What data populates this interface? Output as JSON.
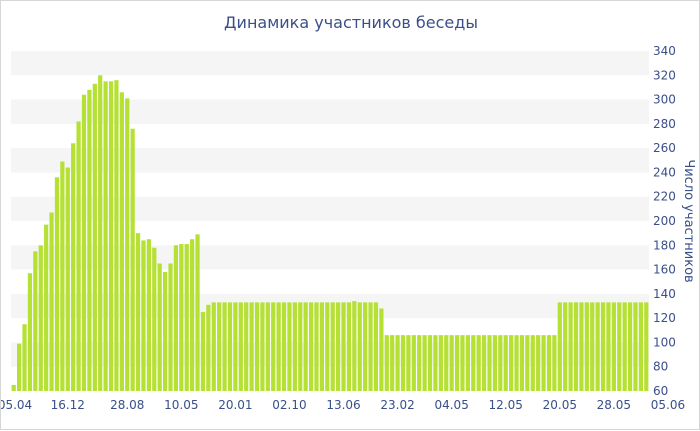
{
  "chart_data": {
    "type": "bar",
    "title": "Динамика участников беседы",
    "ylabel": "Число участников",
    "xlabel": "",
    "ylim": [
      60,
      340
    ],
    "yticks": [
      60,
      80,
      100,
      120,
      140,
      160,
      180,
      200,
      220,
      240,
      260,
      280,
      300,
      320,
      340
    ],
    "xtick_labels": [
      "05.04",
      "16.12",
      "28.08",
      "10.05",
      "20.01",
      "02.10",
      "13.06",
      "23.02",
      "04.05",
      "12.05",
      "20.05",
      "28.05",
      "05.06"
    ],
    "xtick_bar_index": [
      0,
      10,
      21,
      31,
      41,
      51,
      61,
      71,
      81,
      91,
      101,
      111,
      121
    ],
    "grid": "horizontal bands",
    "bar_color": "#b5e134",
    "values": [
      65,
      99,
      115,
      157,
      175,
      180,
      197,
      207,
      236,
      249,
      244,
      264,
      282,
      304,
      308,
      313,
      320,
      315,
      315,
      316,
      306,
      301,
      276,
      190,
      184,
      185,
      178,
      165,
      158,
      165,
      180,
      181,
      181,
      185,
      189,
      125,
      131,
      133,
      133,
      133,
      133,
      133,
      133,
      133,
      133,
      133,
      133,
      133,
      133,
      133,
      133,
      133,
      133,
      133,
      133,
      133,
      133,
      133,
      133,
      133,
      133,
      133,
      133,
      134,
      133,
      133,
      133,
      133,
      128,
      106,
      106,
      106,
      106,
      106,
      106,
      106,
      106,
      106,
      106,
      106,
      106,
      106,
      106,
      106,
      106,
      106,
      106,
      106,
      106,
      106,
      106,
      106,
      106,
      106,
      106,
      106,
      106,
      106,
      106,
      106,
      106,
      133,
      133,
      133,
      133,
      133,
      133,
      133,
      133,
      133,
      133,
      133,
      133,
      133,
      133,
      133,
      133,
      133
    ]
  }
}
